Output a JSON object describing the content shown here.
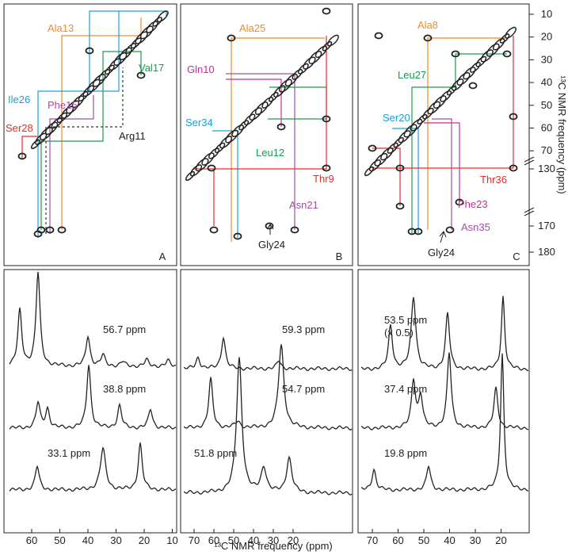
{
  "y_axis": {
    "label": "¹³C NMR frequency (ppm)",
    "ticks": [
      10,
      20,
      30,
      40,
      50,
      60,
      70,
      130,
      170,
      180
    ]
  },
  "x_axis": {
    "label": "¹³C NMR frequency (ppm)",
    "ticks": [
      [
        60,
        50,
        40,
        30,
        20,
        10
      ],
      [
        70,
        60,
        50,
        40,
        30,
        20
      ],
      [
        70,
        60,
        50,
        40,
        30,
        20
      ]
    ]
  },
  "panels": [
    {
      "label": "A",
      "annotations": [
        "Ala13",
        "Val17",
        "Ile26",
        "Phe15",
        "Ser28",
        "Arg11"
      ],
      "traces": [
        "56.7 ppm",
        "38.8 ppm",
        "33.1 ppm"
      ]
    },
    {
      "label": "B",
      "annotations": [
        "Ala25",
        "Gln10",
        "Ser34",
        "Leu12",
        "Thr9",
        "Asn21",
        "Gly24"
      ],
      "traces": [
        "59.3 ppm",
        "54.7 ppm",
        "51.8 ppm"
      ]
    },
    {
      "label": "C",
      "annotations": [
        "Ala8",
        "Leu27",
        "Ser20",
        "Thr36",
        "Phe23",
        "Asn35",
        "Gly24"
      ],
      "traces": [
        "53.5 ppm",
        "37.4 ppm",
        "19.8 ppm"
      ],
      "scale_note": "(x 0.5)"
    }
  ]
}
